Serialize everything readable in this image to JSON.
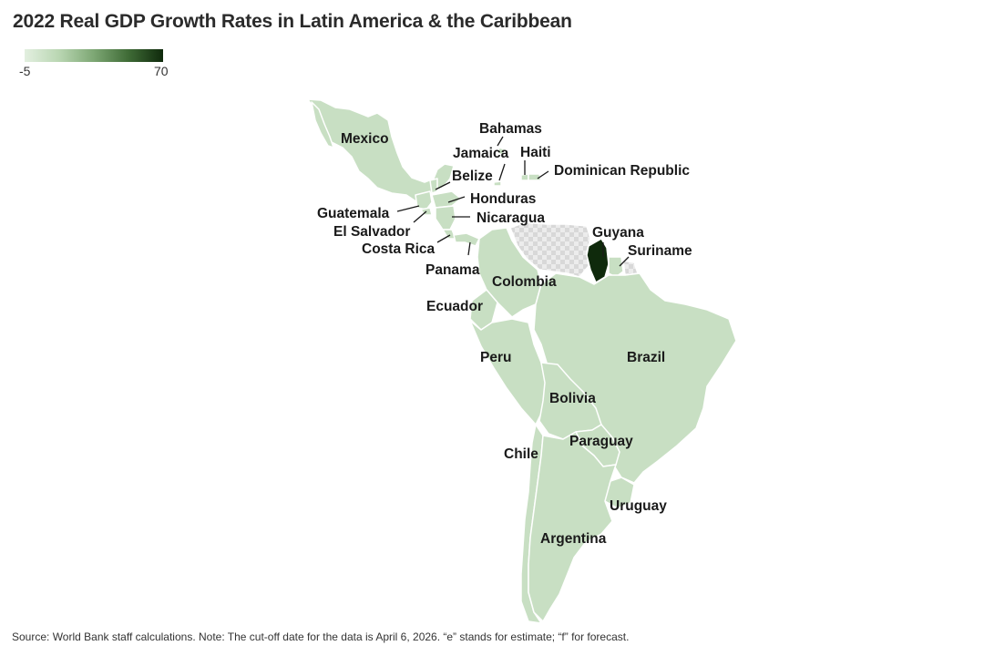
{
  "title": "2022 Real GDP Growth Rates in Latin America & the Caribbean",
  "legend": {
    "min": "-5",
    "max": "70"
  },
  "colors": {
    "low": "#c8dfc3",
    "high": "#0f2a0c",
    "no_data": "#e2e2e2"
  },
  "map_labels": {
    "mexico": "Mexico",
    "bahamas": "Bahamas",
    "jamaica": "Jamaica",
    "haiti": "Haiti",
    "belize": "Belize",
    "dominican_republic": "Dominican Republic",
    "honduras": "Honduras",
    "guatemala": "Guatemala",
    "nicaragua": "Nicaragua",
    "el_salvador": "El Salvador",
    "costa_rica": "Costa Rica",
    "panama": "Panama",
    "guyana": "Guyana",
    "suriname": "Suriname",
    "colombia": "Colombia",
    "ecuador": "Ecuador",
    "peru": "Peru",
    "brazil": "Brazil",
    "bolivia": "Bolivia",
    "chile": "Chile",
    "paraguay": "Paraguay",
    "uruguay": "Uruguay",
    "argentina": "Argentina"
  },
  "footer": "Source: World Bank staff calculations.   Note: The cut-off date for the data is April 6, 2026. “e” stands for estimate; “f” for forecast."
}
